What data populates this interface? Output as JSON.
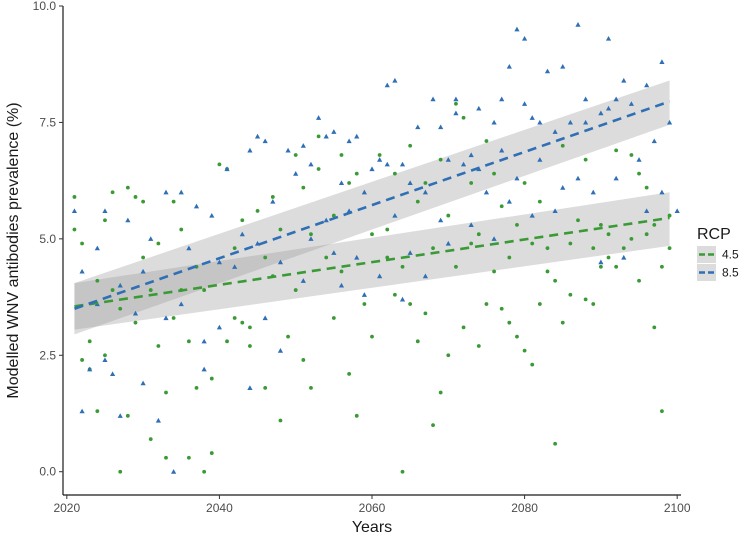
{
  "chart_data": {
    "type": "scatter",
    "title": "",
    "xlabel": "Years",
    "ylabel": "Modelled WNV antibodies prevalence (%)",
    "xlim": [
      2019.5,
      2100.5
    ],
    "ylim": [
      -0.5,
      10.0
    ],
    "xticks": [
      2020,
      2040,
      2060,
      2080,
      2100
    ],
    "yticks": [
      0.0,
      2.5,
      5.0,
      7.5,
      10.0
    ],
    "ytick_labels": [
      "0.0",
      "2.5",
      "5.0",
      "7.5",
      "10.0"
    ],
    "grid": false,
    "legend": {
      "title": "RCP",
      "placement": "right"
    },
    "series": [
      {
        "name": "4.5",
        "color": "#3a9a35",
        "marker": "circle",
        "trend": {
          "x": [
            2021,
            2099
          ],
          "y": [
            3.55,
            5.45
          ],
          "ci_lower": [
            3.05,
            4.85
          ],
          "ci_upper": [
            4.05,
            6.0
          ]
        },
        "points": [
          [
            2021,
            5.9
          ],
          [
            2021,
            5.2
          ],
          [
            2022,
            4.9
          ],
          [
            2022,
            2.4
          ],
          [
            2023,
            2.8
          ],
          [
            2023,
            2.2
          ],
          [
            2024,
            4.1
          ],
          [
            2024,
            1.3
          ],
          [
            2025,
            5.4
          ],
          [
            2025,
            2.5
          ],
          [
            2026,
            3.9
          ],
          [
            2026,
            6.0
          ],
          [
            2027,
            0.0
          ],
          [
            2027,
            3.5
          ],
          [
            2028,
            6.1
          ],
          [
            2028,
            1.2
          ],
          [
            2029,
            5.9
          ],
          [
            2029,
            3.2
          ],
          [
            2030,
            5.8
          ],
          [
            2030,
            4.6
          ],
          [
            2031,
            0.7
          ],
          [
            2031,
            3.9
          ],
          [
            2032,
            4.9
          ],
          [
            2032,
            2.7
          ],
          [
            2033,
            1.7
          ],
          [
            2033,
            0.3
          ],
          [
            2034,
            3.3
          ],
          [
            2034,
            5.8
          ],
          [
            2035,
            3.9
          ],
          [
            2035,
            5.2
          ],
          [
            2036,
            2.8
          ],
          [
            2036,
            0.3
          ],
          [
            2037,
            4.4
          ],
          [
            2037,
            1.8
          ],
          [
            2038,
            3.9
          ],
          [
            2038,
            0.0
          ],
          [
            2039,
            2.0
          ],
          [
            2039,
            0.4
          ],
          [
            2040,
            6.6
          ],
          [
            2041,
            6.5
          ],
          [
            2041,
            2.8
          ],
          [
            2042,
            4.8
          ],
          [
            2042,
            3.3
          ],
          [
            2043,
            5.4
          ],
          [
            2043,
            3.2
          ],
          [
            2044,
            3.1
          ],
          [
            2044,
            2.7
          ],
          [
            2045,
            5.6
          ],
          [
            2046,
            1.8
          ],
          [
            2046,
            4.6
          ],
          [
            2047,
            4.2
          ],
          [
            2047,
            5.9
          ],
          [
            2048,
            1.1
          ],
          [
            2048,
            5.2
          ],
          [
            2049,
            2.9
          ],
          [
            2050,
            3.9
          ],
          [
            2050,
            6.8
          ],
          [
            2051,
            2.4
          ],
          [
            2051,
            6.1
          ],
          [
            2052,
            5.1
          ],
          [
            2052,
            1.8
          ],
          [
            2053,
            7.2
          ],
          [
            2053,
            6.5
          ],
          [
            2054,
            4.6
          ],
          [
            2055,
            5.5
          ],
          [
            2055,
            3.3
          ],
          [
            2056,
            6.8
          ],
          [
            2056,
            4.3
          ],
          [
            2057,
            2.1
          ],
          [
            2057,
            6.2
          ],
          [
            2058,
            1.2
          ],
          [
            2058,
            6.4
          ],
          [
            2059,
            3.6
          ],
          [
            2060,
            5.1
          ],
          [
            2060,
            2.9
          ],
          [
            2061,
            6.8
          ],
          [
            2062,
            4.6
          ],
          [
            2062,
            5.2
          ],
          [
            2063,
            3.8
          ],
          [
            2063,
            6.4
          ],
          [
            2064,
            0.0
          ],
          [
            2064,
            4.4
          ],
          [
            2065,
            3.6
          ],
          [
            2065,
            7.0
          ],
          [
            2066,
            5.8
          ],
          [
            2066,
            2.8
          ],
          [
            2067,
            6.2
          ],
          [
            2067,
            3.4
          ],
          [
            2068,
            1.0
          ],
          [
            2068,
            4.8
          ],
          [
            2069,
            1.7
          ],
          [
            2069,
            6.7
          ],
          [
            2070,
            5.5
          ],
          [
            2070,
            2.5
          ],
          [
            2071,
            7.9
          ],
          [
            2071,
            4.4
          ],
          [
            2072,
            7.6
          ],
          [
            2072,
            3.1
          ],
          [
            2073,
            6.2
          ],
          [
            2073,
            4.9
          ],
          [
            2074,
            5.1
          ],
          [
            2074,
            2.7
          ],
          [
            2075,
            7.1
          ],
          [
            2075,
            3.6
          ],
          [
            2076,
            4.3
          ],
          [
            2076,
            6.4
          ],
          [
            2077,
            3.5
          ],
          [
            2077,
            5.7
          ],
          [
            2078,
            4.6
          ],
          [
            2078,
            3.2
          ],
          [
            2079,
            2.9
          ],
          [
            2079,
            5.3
          ],
          [
            2080,
            6.2
          ],
          [
            2080,
            2.6
          ],
          [
            2081,
            2.3
          ],
          [
            2081,
            4.9
          ],
          [
            2082,
            5.8
          ],
          [
            2082,
            3.6
          ],
          [
            2083,
            4.3
          ],
          [
            2083,
            4.8
          ],
          [
            2084,
            4.1
          ],
          [
            2084,
            0.6
          ],
          [
            2085,
            7.0
          ],
          [
            2085,
            3.2
          ],
          [
            2086,
            4.9
          ],
          [
            2086,
            3.8
          ],
          [
            2087,
            5.4
          ],
          [
            2088,
            3.7
          ],
          [
            2088,
            6.7
          ],
          [
            2089,
            4.8
          ],
          [
            2089,
            3.6
          ],
          [
            2090,
            4.4
          ],
          [
            2090,
            5.3
          ],
          [
            2091,
            5.1
          ],
          [
            2091,
            4.6
          ],
          [
            2092,
            6.9
          ],
          [
            2092,
            4.4
          ],
          [
            2093,
            4.8
          ],
          [
            2094,
            6.8
          ],
          [
            2094,
            5.0
          ],
          [
            2095,
            4.1
          ],
          [
            2095,
            6.4
          ],
          [
            2096,
            5.1
          ],
          [
            2096,
            6.1
          ],
          [
            2097,
            3.1
          ],
          [
            2097,
            5.3
          ],
          [
            2098,
            4.4
          ],
          [
            2098,
            1.3
          ],
          [
            2099,
            5.5
          ],
          [
            2099,
            4.8
          ]
        ]
      },
      {
        "name": "8.5",
        "color": "#2f6fb5",
        "marker": "triangle",
        "trend": {
          "x": [
            2021,
            2099
          ],
          "y": [
            3.5,
            7.95
          ],
          "ci_lower": [
            2.95,
            7.45
          ],
          "ci_upper": [
            4.05,
            8.4
          ]
        },
        "points": [
          [
            2021,
            5.6
          ],
          [
            2022,
            1.3
          ],
          [
            2022,
            4.3
          ],
          [
            2023,
            2.2
          ],
          [
            2024,
            3.6
          ],
          [
            2024,
            4.8
          ],
          [
            2025,
            5.6
          ],
          [
            2025,
            2.4
          ],
          [
            2026,
            2.1
          ],
          [
            2027,
            4.0
          ],
          [
            2027,
            1.2
          ],
          [
            2028,
            5.4
          ],
          [
            2029,
            3.4
          ],
          [
            2030,
            4.3
          ],
          [
            2030,
            1.9
          ],
          [
            2031,
            5.0
          ],
          [
            2032,
            1.1
          ],
          [
            2033,
            6.0
          ],
          [
            2033,
            3.3
          ],
          [
            2034,
            0.0
          ],
          [
            2035,
            3.6
          ],
          [
            2035,
            6.0
          ],
          [
            2036,
            4.8
          ],
          [
            2037,
            5.7
          ],
          [
            2038,
            2.8
          ],
          [
            2038,
            2.2
          ],
          [
            2039,
            5.5
          ],
          [
            2040,
            3.1
          ],
          [
            2040,
            4.5
          ],
          [
            2041,
            6.5
          ],
          [
            2042,
            4.4
          ],
          [
            2043,
            5.1
          ],
          [
            2044,
            1.8
          ],
          [
            2044,
            6.9
          ],
          [
            2045,
            4.9
          ],
          [
            2045,
            7.2
          ],
          [
            2046,
            3.3
          ],
          [
            2046,
            7.1
          ],
          [
            2047,
            5.8
          ],
          [
            2048,
            2.6
          ],
          [
            2048,
            4.5
          ],
          [
            2049,
            6.9
          ],
          [
            2050,
            6.4
          ],
          [
            2051,
            4.1
          ],
          [
            2051,
            7.0
          ],
          [
            2052,
            5.0
          ],
          [
            2052,
            6.6
          ],
          [
            2053,
            7.6
          ],
          [
            2054,
            5.4
          ],
          [
            2054,
            7.2
          ],
          [
            2055,
            4.7
          ],
          [
            2055,
            7.3
          ],
          [
            2056,
            4.0
          ],
          [
            2056,
            6.2
          ],
          [
            2057,
            5.6
          ],
          [
            2057,
            7.1
          ],
          [
            2058,
            4.6
          ],
          [
            2058,
            7.2
          ],
          [
            2059,
            6.0
          ],
          [
            2059,
            3.8
          ],
          [
            2060,
            6.5
          ],
          [
            2061,
            6.7
          ],
          [
            2061,
            4.2
          ],
          [
            2062,
            8.3
          ],
          [
            2062,
            6.6
          ],
          [
            2063,
            8.4
          ],
          [
            2063,
            5.5
          ],
          [
            2064,
            6.6
          ],
          [
            2064,
            3.7
          ],
          [
            2065,
            4.7
          ],
          [
            2065,
            6.2
          ],
          [
            2066,
            7.4
          ],
          [
            2067,
            6.0
          ],
          [
            2067,
            4.2
          ],
          [
            2068,
            8.0
          ],
          [
            2069,
            7.4
          ],
          [
            2069,
            5.4
          ],
          [
            2070,
            6.7
          ],
          [
            2070,
            4.9
          ],
          [
            2071,
            7.7
          ],
          [
            2071,
            8.0
          ],
          [
            2072,
            6.6
          ],
          [
            2073,
            6.8
          ],
          [
            2073,
            5.3
          ],
          [
            2074,
            7.8
          ],
          [
            2074,
            6.5
          ],
          [
            2075,
            6.0
          ],
          [
            2076,
            7.5
          ],
          [
            2076,
            5.0
          ],
          [
            2077,
            8.0
          ],
          [
            2077,
            6.9
          ],
          [
            2078,
            8.7
          ],
          [
            2078,
            5.8
          ],
          [
            2079,
            9.5
          ],
          [
            2079,
            6.3
          ],
          [
            2080,
            9.3
          ],
          [
            2080,
            7.9
          ],
          [
            2081,
            7.6
          ],
          [
            2081,
            5.5
          ],
          [
            2082,
            7.5
          ],
          [
            2082,
            6.7
          ],
          [
            2083,
            8.6
          ],
          [
            2084,
            5.6
          ],
          [
            2084,
            7.3
          ],
          [
            2085,
            8.7
          ],
          [
            2085,
            6.1
          ],
          [
            2086,
            7.5
          ],
          [
            2087,
            9.6
          ],
          [
            2087,
            6.3
          ],
          [
            2088,
            8.0
          ],
          [
            2088,
            7.5
          ],
          [
            2089,
            6.0
          ],
          [
            2090,
            7.7
          ],
          [
            2090,
            4.5
          ],
          [
            2091,
            9.3
          ],
          [
            2091,
            7.8
          ],
          [
            2092,
            8.0
          ],
          [
            2092,
            6.3
          ],
          [
            2093,
            8.4
          ],
          [
            2093,
            4.6
          ],
          [
            2094,
            7.9
          ],
          [
            2095,
            6.7
          ],
          [
            2096,
            8.3
          ],
          [
            2096,
            5.6
          ],
          [
            2097,
            7.1
          ],
          [
            2098,
            8.8
          ],
          [
            2098,
            6.0
          ],
          [
            2099,
            7.5
          ],
          [
            2100,
            5.6
          ]
        ]
      }
    ]
  }
}
